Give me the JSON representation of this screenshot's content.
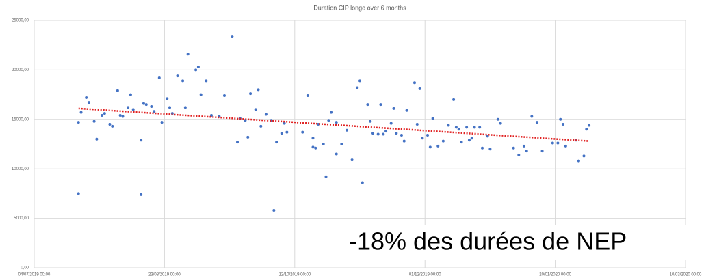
{
  "chart_data": {
    "type": "scatter",
    "title": "Duration CIP longo over 6 months",
    "annotation": "-18% des durées de NEP",
    "x": [
      "2019-07-21",
      "2019-07-21",
      "2019-07-22",
      "2019-07-24",
      "2019-07-25",
      "2019-07-27",
      "2019-07-28",
      "2019-07-30",
      "2019-07-31",
      "2019-08-02",
      "2019-08-03",
      "2019-08-05",
      "2019-08-06",
      "2019-08-07",
      "2019-08-09",
      "2019-08-10",
      "2019-08-11",
      "2019-08-14",
      "2019-08-14",
      "2019-08-15",
      "2019-08-16",
      "2019-08-18",
      "2019-08-19",
      "2019-08-21",
      "2019-08-22",
      "2019-08-24",
      "2019-08-25",
      "2019-08-26",
      "2019-08-28",
      "2019-08-30",
      "2019-08-31",
      "2019-09-01",
      "2019-09-04",
      "2019-09-05",
      "2019-09-06",
      "2019-09-08",
      "2019-09-10",
      "2019-09-13",
      "2019-09-15",
      "2019-09-18",
      "2019-09-20",
      "2019-09-21",
      "2019-09-23",
      "2019-09-24",
      "2019-09-25",
      "2019-09-27",
      "2019-09-28",
      "2019-09-29",
      "2019-10-01",
      "2019-10-03",
      "2019-10-04",
      "2019-10-05",
      "2019-10-07",
      "2019-10-08",
      "2019-10-09",
      "2019-10-15",
      "2019-10-17",
      "2019-10-19",
      "2019-10-19",
      "2019-10-20",
      "2019-10-21",
      "2019-10-23",
      "2019-10-24",
      "2019-10-25",
      "2019-10-26",
      "2019-10-28",
      "2019-10-28",
      "2019-10-30",
      "2019-11-01",
      "2019-11-03",
      "2019-11-05",
      "2019-11-06",
      "2019-11-07",
      "2019-11-09",
      "2019-11-10",
      "2019-11-11",
      "2019-11-13",
      "2019-11-14",
      "2019-11-15",
      "2019-11-16",
      "2019-11-18",
      "2019-11-19",
      "2019-11-20",
      "2019-11-22",
      "2019-11-23",
      "2019-11-24",
      "2019-11-27",
      "2019-11-28",
      "2019-11-29",
      "2019-11-30",
      "2019-12-02",
      "2019-12-03",
      "2019-12-04",
      "2019-12-06",
      "2019-12-08",
      "2019-12-10",
      "2019-12-12",
      "2019-12-13",
      "2019-12-14",
      "2019-12-15",
      "2019-12-17",
      "2019-12-18",
      "2019-12-19",
      "2019-12-20",
      "2019-12-22",
      "2019-12-23",
      "2019-12-25",
      "2019-12-26",
      "2019-12-29",
      "2019-12-30",
      "2020-01-04",
      "2020-01-06",
      "2020-01-08",
      "2020-01-09",
      "2020-01-11",
      "2020-01-13",
      "2020-01-15",
      "2020-01-19",
      "2020-01-21",
      "2020-01-22",
      "2020-01-23",
      "2020-01-24",
      "2020-01-28",
      "2020-01-29",
      "2020-01-31",
      "2020-02-01",
      "2020-02-02"
    ],
    "values": [
      14700,
      7500,
      15700,
      17200,
      16700,
      14800,
      13000,
      15400,
      15600,
      14500,
      14300,
      17900,
      15400,
      15300,
      16200,
      17500,
      16000,
      12900,
      7400,
      16600,
      16500,
      16300,
      15800,
      19200,
      14700,
      17100,
      16200,
      15600,
      19400,
      18900,
      16200,
      21600,
      20000,
      20300,
      17500,
      18900,
      15400,
      15300,
      17400,
      23400,
      12700,
      15100,
      14900,
      13200,
      17600,
      16000,
      18000,
      14300,
      15500,
      14900,
      5800,
      12700,
      13600,
      14600,
      13700,
      13700,
      17400,
      13100,
      12200,
      12100,
      14500,
      12500,
      9200,
      14900,
      15700,
      14700,
      11500,
      12500,
      13900,
      10900,
      18200,
      18900,
      8600,
      16500,
      14800,
      13600,
      13500,
      16500,
      13500,
      13800,
      14600,
      16100,
      13600,
      13400,
      12800,
      15900,
      18700,
      14500,
      18100,
      13100,
      13400,
      12200,
      15100,
      12300,
      12800,
      14400,
      17000,
      14200,
      14000,
      12700,
      14200,
      12900,
      13100,
      14200,
      14200,
      12100,
      13300,
      12000,
      15000,
      14600,
      12100,
      11400,
      12300,
      11800,
      15300,
      14700,
      11800,
      12600,
      12600,
      15000,
      14500,
      12300,
      12900,
      10800,
      11300,
      14000,
      14400
    ],
    "color": "#4472c4",
    "trendline": {
      "x": [
        "2019-07-21",
        "2020-02-02"
      ],
      "values": [
        16100,
        12800
      ],
      "color": "#e02020"
    },
    "xlim": [
      "2019-07-04",
      "2020-03-10"
    ],
    "xticks": [
      {
        "value": "2019-07-04",
        "label": "04/07/2019 00:00"
      },
      {
        "value": "2019-08-23",
        "label": "23/08/2019 00:00"
      },
      {
        "value": "2019-10-12",
        "label": "12/10/2019 00:00"
      },
      {
        "value": "2019-12-01",
        "label": "01/12/2019 00:00"
      },
      {
        "value": "2020-01-20",
        "label": "20/01/2020 00:00"
      },
      {
        "value": "2020-03-10",
        "label": "10/03/2020 00:00"
      }
    ],
    "ylim": [
      0,
      25000
    ],
    "yticks": [
      {
        "value": 0,
        "label": "0,00"
      },
      {
        "value": 5000,
        "label": "5000,00"
      },
      {
        "value": 10000,
        "label": "10000,00"
      },
      {
        "value": 15000,
        "label": "15000,00"
      },
      {
        "value": 20000,
        "label": "20000,00"
      },
      {
        "value": 25000,
        "label": "25000,00"
      }
    ],
    "grid": true
  }
}
